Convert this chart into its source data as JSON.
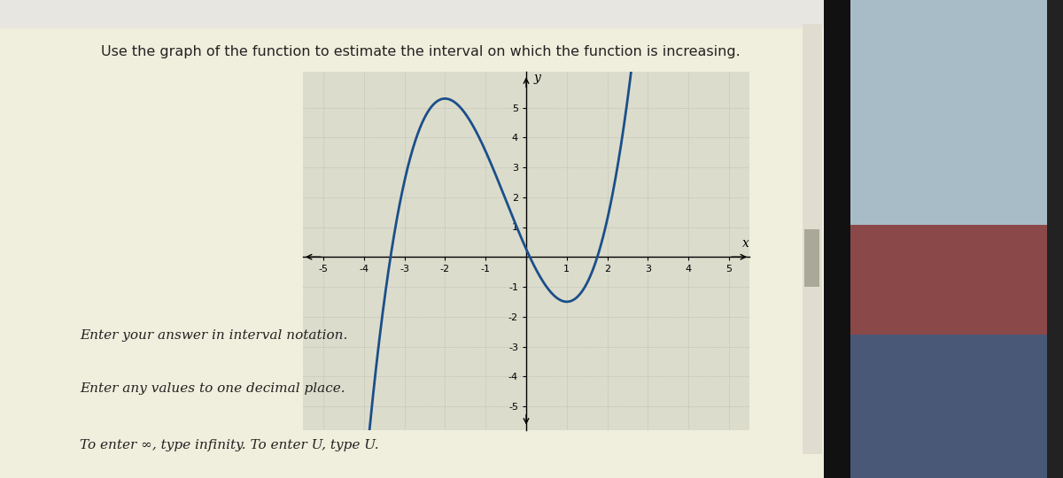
{
  "title": "Use the graph of the function to estimate the interval on which the function is increasing.",
  "title_fontsize": 11.5,
  "xlim": [
    -5.5,
    5.5
  ],
  "ylim": [
    -5.8,
    6.2
  ],
  "xticks": [
    -5,
    -4,
    -3,
    -2,
    -1,
    0,
    1,
    2,
    3,
    4,
    5
  ],
  "yticks": [
    -5,
    -4,
    -3,
    -2,
    -1,
    1,
    2,
    3,
    4,
    5
  ],
  "curve_color": "#1a4f8a",
  "curve_linewidth": 2.0,
  "page_bg": "#f0eedc",
  "graph_bg": "#dcdccc",
  "right_bg_color1": "#e8e6d8",
  "dark_bezel": "#111111",
  "right_photo_red": "#8b4040",
  "right_photo_blue": "#4a5a7a",
  "right_bg_light": "#b8c8d0",
  "grid_color": "#aaaaaa",
  "grid_linewidth": 0.5,
  "text_lines": [
    "Enter your answer in interval notation.",
    "Enter any values to one decimal place.",
    "To enter ∞, type infinity. To enter U, type U."
  ],
  "text_fontsize": 11,
  "curve_local_max_x": -2.0,
  "curve_local_max_y": 5.3,
  "curve_local_min_x": 1.0,
  "curve_local_min_y": -1.5
}
